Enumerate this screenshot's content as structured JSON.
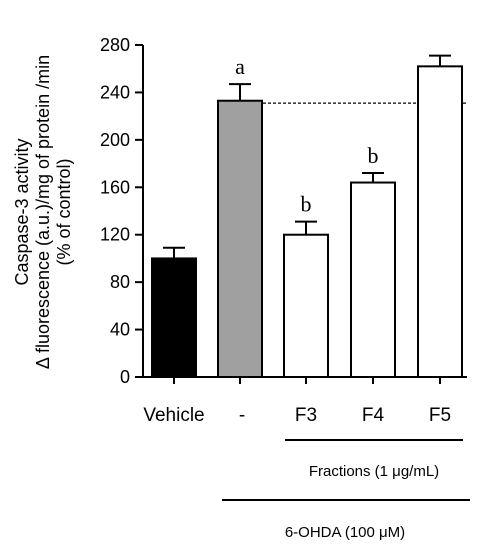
{
  "chart_data": {
    "type": "bar",
    "ylabel_lines": [
      "Caspase-3 activity",
      "Δ fluorescence (a.u.)/mg of protein /min",
      "(% of control)"
    ],
    "categories": [
      "Vehicle",
      "-",
      "F3",
      "F4",
      "F5"
    ],
    "values": [
      100,
      233,
      120,
      164,
      262
    ],
    "errors": [
      9,
      14,
      11,
      8,
      9
    ],
    "bar_colors": [
      "#000000",
      "#a0a0a0",
      "#ffffff",
      "#ffffff",
      "#ffffff"
    ],
    "significance": [
      "",
      "a",
      "b",
      "b",
      ""
    ],
    "yticks": [
      "0",
      "40",
      "80",
      "120",
      "160",
      "200",
      "240",
      "280"
    ],
    "ylim": [
      0,
      280
    ],
    "reference_line": 231,
    "group_labels": {
      "fractions": "Fractions (1 μg/mL)",
      "treatment": "6-OHDA (100 μM)"
    }
  }
}
